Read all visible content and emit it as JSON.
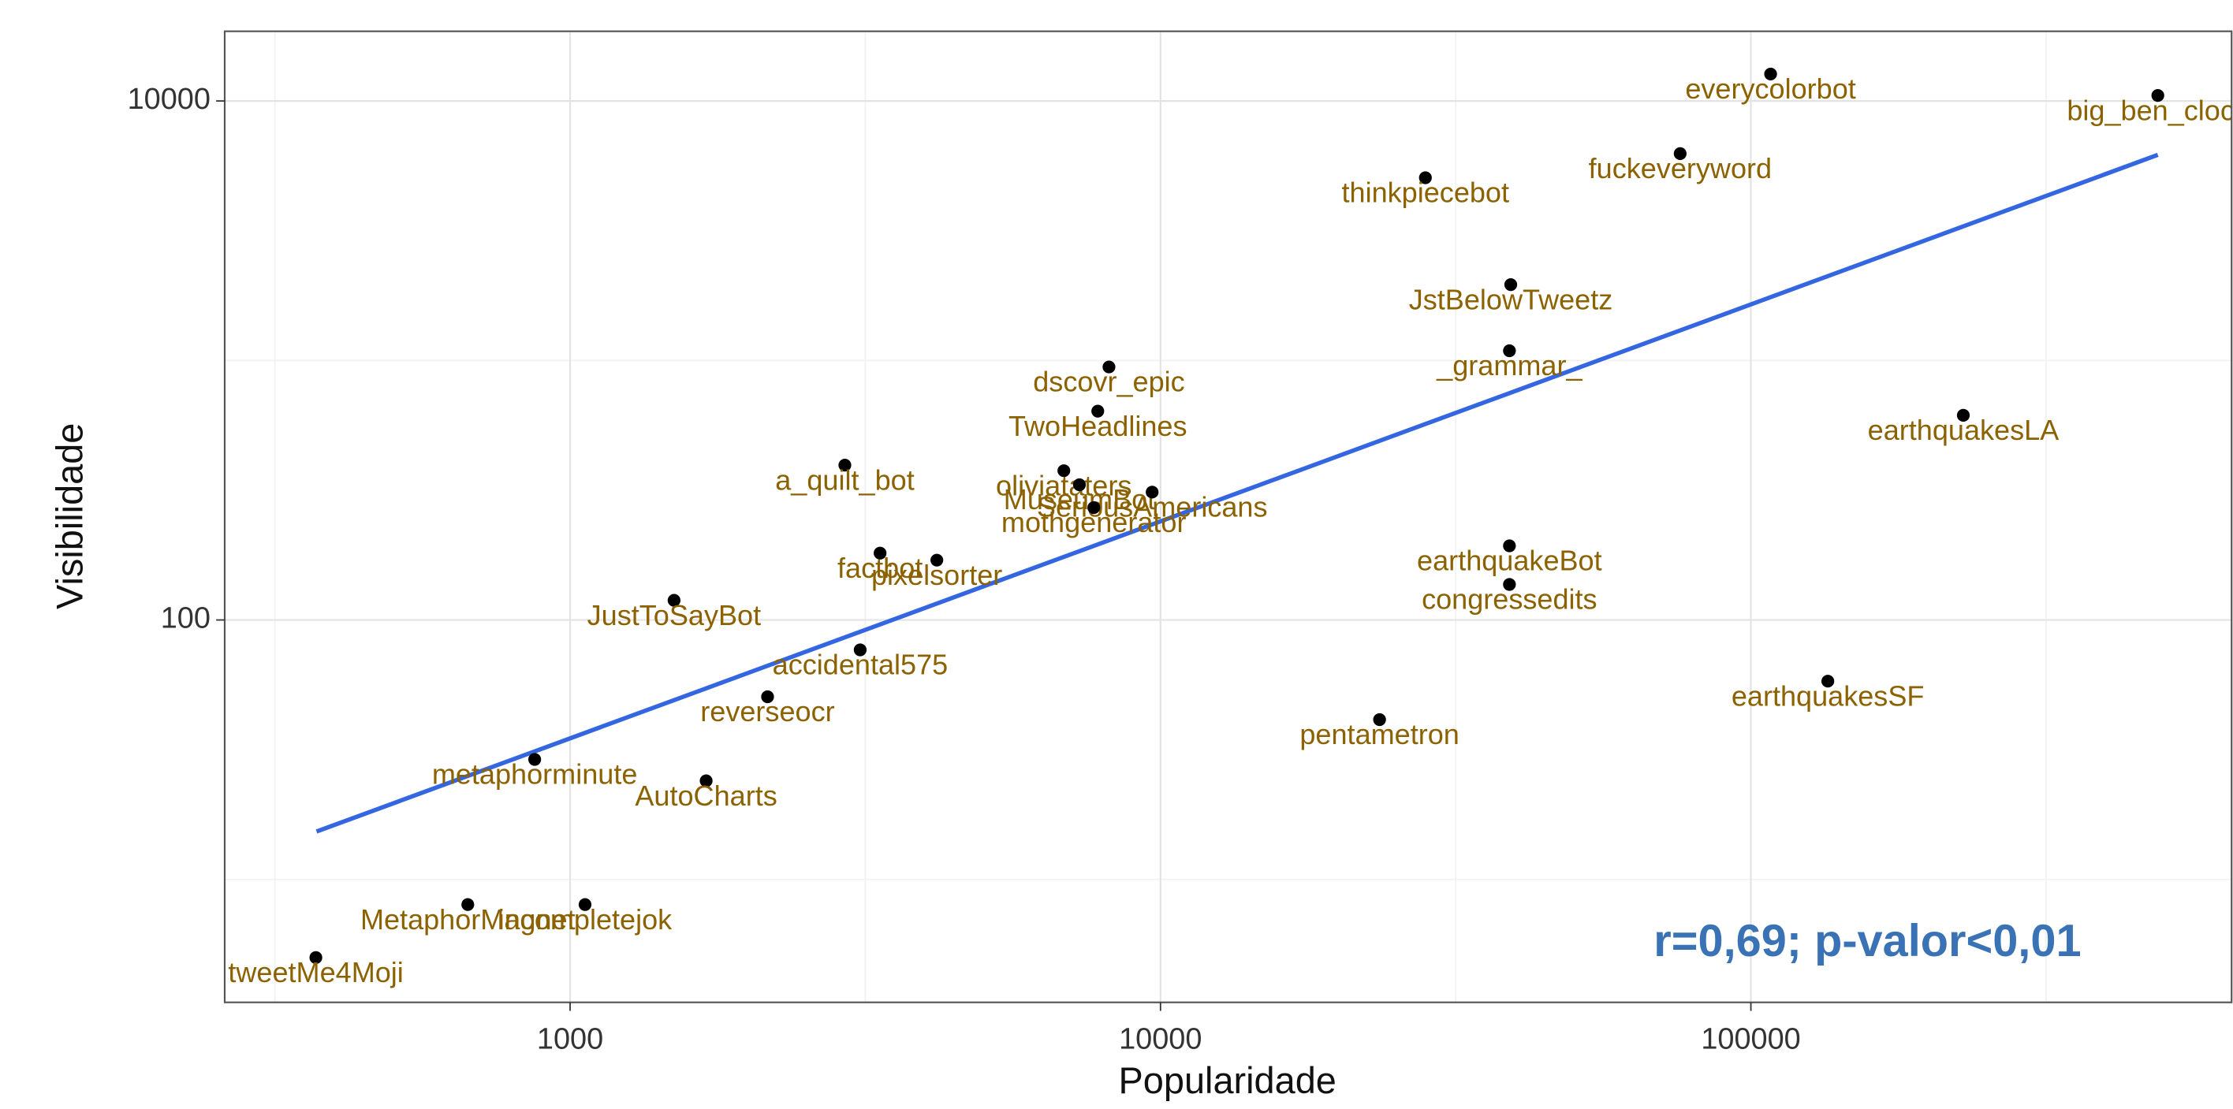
{
  "chart_data": {
    "type": "scatter",
    "xlabel": "Popularidade",
    "ylabel": "Visibilidade",
    "annotation": "r=0,69; p-valor<0,01",
    "annotation_color": "#3a73b5",
    "xlog": true,
    "ylog": true,
    "grid": true,
    "xlim": [
      260,
      652000
    ],
    "ylim": [
      3.36,
      18560
    ],
    "xticks": [
      1000,
      10000,
      100000
    ],
    "yticks": [
      100,
      10000
    ],
    "point_color": "#000000",
    "label_color": "#8c6200",
    "labels": [
      "everycolorbot",
      "big_ben_clock",
      "fuckeveryword",
      "thinkpiecebot",
      "JstBelowTweetz",
      "_grammar_",
      "earthquakesLA",
      "dscovr_epic",
      "TwoHeadlines",
      "a_quilt_bot",
      "oliviataters",
      "MuseumBot",
      "SeriousAmericans",
      "mothgenerator",
      "factbot",
      "pixelsorter",
      "earthquakeBot",
      "congressedits",
      "JustToSayBot",
      "accidental575",
      "reverseocr",
      "earthquakesSF",
      "pentametron",
      "metaphorminute",
      "AutoCharts",
      "MetaphorMagnet",
      "incompletejok",
      "tweetMe4Moji"
    ],
    "x": [
      108000,
      489000,
      75900,
      28100,
      39200,
      39000,
      229000,
      8180,
      7830,
      2920,
      6860,
      7290,
      9680,
      7710,
      3350,
      4180,
      39000,
      39000,
      1500,
      3100,
      2160,
      135000,
      23500,
      871,
      1700,
      671,
      1060,
      371
    ],
    "y": [
      12700,
      10500,
      6270,
      5060,
      1960,
      1090,
      615,
      944,
      638,
      395,
      376,
      332,
      311,
      271,
      181,
      170,
      193,
      137,
      119,
      76.7,
      50.6,
      58.1,
      41.3,
      29.0,
      24.0,
      8.0,
      8.0,
      5.0
    ],
    "trend": {
      "x": [
        372,
        489000
      ],
      "y": [
        15.3,
        6200
      ],
      "color": "#3366e0"
    }
  }
}
